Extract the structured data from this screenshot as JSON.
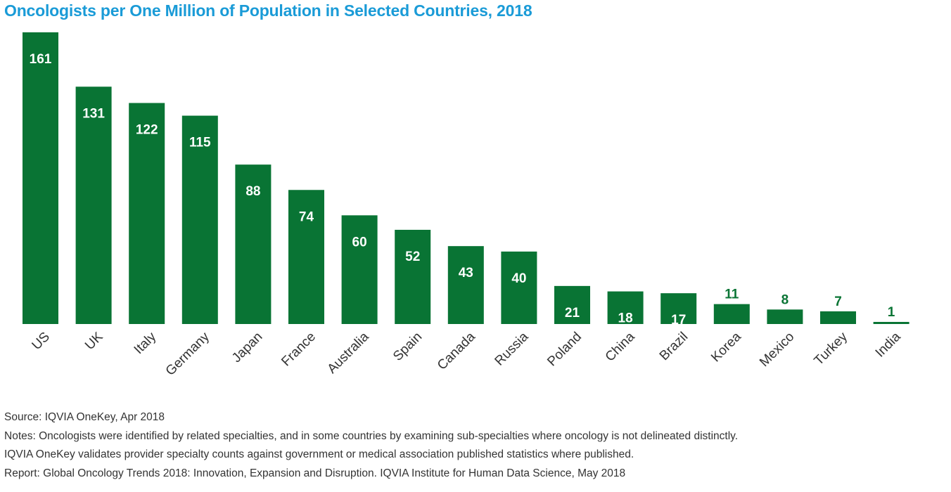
{
  "chart_data": {
    "type": "bar",
    "title": "Oncologists per One Million of Population in Selected Countries, 2018",
    "xlabel": "",
    "ylabel": "",
    "ylim": [
      0,
      161
    ],
    "grid": false,
    "legend": "none",
    "bar_color": "#097434",
    "categories": [
      "US",
      "UK",
      "Italy",
      "Germany",
      "Japan",
      "France",
      "Australia",
      "Spain",
      "Canada",
      "Russia",
      "Poland",
      "China",
      "Brazil",
      "Korea",
      "Mexico",
      "Turkey",
      "India"
    ],
    "values": [
      161,
      131,
      122,
      115,
      88,
      74,
      60,
      52,
      43,
      40,
      21,
      18,
      17,
      11,
      8,
      7,
      1
    ],
    "data_labels": [
      "161",
      "131",
      "122",
      "115",
      "88",
      "74",
      "60",
      "52",
      "43",
      "40",
      "21",
      "18",
      "17",
      "11",
      "8",
      "7",
      "1"
    ]
  },
  "footer": {
    "source": "Source: IQVIA OneKey, Apr 2018",
    "notes_line1": "Notes: Oncologists were identified by related specialties, and in some countries by examining sub-specialties where oncology is not delineated distinctly.",
    "notes_line2": "IQVIA OneKey validates provider specialty counts against government or medical association published statistics where published.",
    "report": "Report: Global Oncology Trends 2018: Innovation, Expansion and Disruption. IQVIA Institute for Human Data Science, May 2018"
  }
}
